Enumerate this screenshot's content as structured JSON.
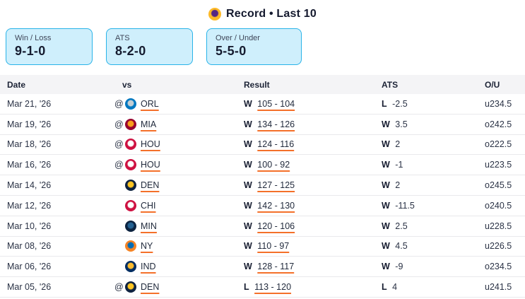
{
  "header": {
    "title": "Record • Last 10",
    "team_logo_colors": [
      "#fdb927",
      "#552583"
    ]
  },
  "accent_colors": {
    "box_border": "#29b3e8",
    "box_fill": "#cfeffc",
    "link_underline": "#f4702a",
    "text": "#222b3d"
  },
  "stat_boxes": [
    {
      "label": "Win / Loss",
      "value": "9-1-0"
    },
    {
      "label": "ATS",
      "value": "8-2-0"
    },
    {
      "label": "Over / Under",
      "value": "5-5-0"
    }
  ],
  "table": {
    "columns": {
      "date": "Date",
      "vs": "vs",
      "result": "Result",
      "ats": "ATS",
      "ou": "O/U"
    },
    "rows": [
      {
        "date": "Mar 21, '26",
        "at": "@",
        "opponent": "ORL",
        "result_wl": "W",
        "score": "105 - 104",
        "ats_wl": "L",
        "ats_line": "-2.5",
        "ou": "u234.5",
        "logo_colors": [
          "#0077c0",
          "#c4ced4"
        ]
      },
      {
        "date": "Mar 19, '26",
        "at": "@",
        "opponent": "MIA",
        "result_wl": "W",
        "score": "134 - 126",
        "ats_wl": "W",
        "ats_line": "3.5",
        "ou": "o242.5",
        "logo_colors": [
          "#98002e",
          "#f9a01b"
        ]
      },
      {
        "date": "Mar 18, '26",
        "at": "@",
        "opponent": "HOU",
        "result_wl": "W",
        "score": "124 - 116",
        "ats_wl": "W",
        "ats_line": "2",
        "ou": "o222.5",
        "logo_colors": [
          "#ce1141",
          "#ffffff"
        ]
      },
      {
        "date": "Mar 16, '26",
        "at": "@",
        "opponent": "HOU",
        "result_wl": "W",
        "score": "100 - 92",
        "ats_wl": "W",
        "ats_line": "-1",
        "ou": "u223.5",
        "logo_colors": [
          "#ce1141",
          "#ffffff"
        ]
      },
      {
        "date": "Mar 14, '26",
        "at": "",
        "opponent": "DEN",
        "result_wl": "W",
        "score": "127 - 125",
        "ats_wl": "W",
        "ats_line": "2",
        "ou": "o245.5",
        "logo_colors": [
          "#0e2240",
          "#fec524"
        ]
      },
      {
        "date": "Mar 12, '26",
        "at": "",
        "opponent": "CHI",
        "result_wl": "W",
        "score": "142 - 130",
        "ats_wl": "W",
        "ats_line": "-11.5",
        "ou": "o240.5",
        "logo_colors": [
          "#ce1141",
          "#ffffff"
        ]
      },
      {
        "date": "Mar 10, '26",
        "at": "",
        "opponent": "MIN",
        "result_wl": "W",
        "score": "120 - 106",
        "ats_wl": "W",
        "ats_line": "2.5",
        "ou": "u228.5",
        "logo_colors": [
          "#0c2340",
          "#236192"
        ]
      },
      {
        "date": "Mar 08, '26",
        "at": "",
        "opponent": "NY",
        "result_wl": "W",
        "score": "110 - 97",
        "ats_wl": "W",
        "ats_line": "4.5",
        "ou": "u226.5",
        "logo_colors": [
          "#f58426",
          "#006bb6"
        ]
      },
      {
        "date": "Mar 06, '26",
        "at": "",
        "opponent": "IND",
        "result_wl": "W",
        "score": "128 - 117",
        "ats_wl": "W",
        "ats_line": "-9",
        "ou": "o234.5",
        "logo_colors": [
          "#002d62",
          "#fdbb30"
        ]
      },
      {
        "date": "Mar 05, '26",
        "at": "@",
        "opponent": "DEN",
        "result_wl": "L",
        "score": "113 - 120",
        "ats_wl": "L",
        "ats_line": "4",
        "ou": "u241.5",
        "logo_colors": [
          "#0e2240",
          "#fec524"
        ]
      }
    ]
  }
}
